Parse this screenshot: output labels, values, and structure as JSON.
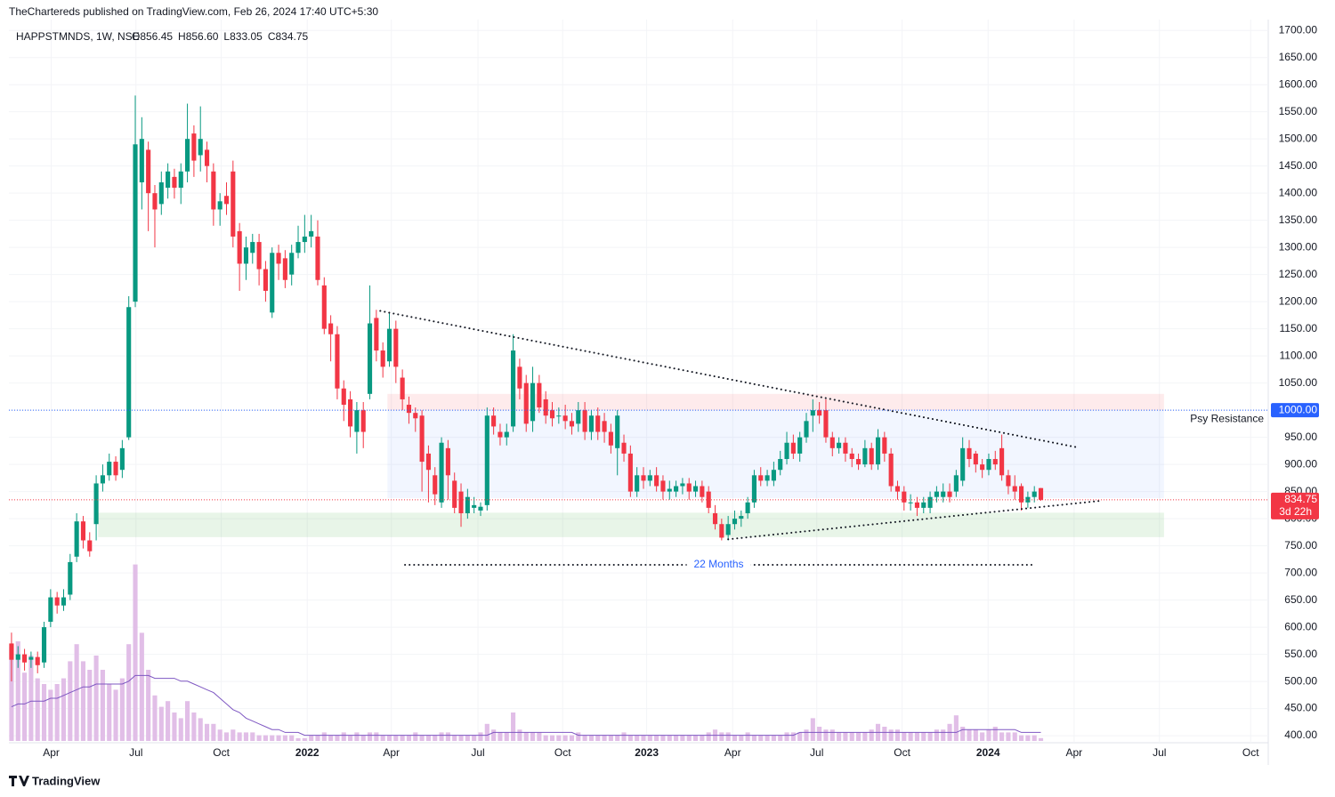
{
  "header": {
    "published": "TheChartereds published on TradingView.com, Feb 26, 2024 17:40 UTC+5:30",
    "footer": "TradingView"
  },
  "chart_data": {
    "type": "candlestick",
    "symbol": "HAPPSTMNDS, 1W, NSE",
    "legend_ohlc": [
      "O856.45",
      "H856.60",
      "L833.05",
      "C834.75"
    ],
    "up_color": "#089981",
    "down_color": "#f23645",
    "volume_color": "#e1bee7",
    "volume_ma_color": "#7e57c2",
    "grid": true,
    "open": [
      570,
      540,
      550,
      540,
      545,
      535,
      610,
      655,
      640,
      660,
      730,
      795,
      760,
      790,
      865,
      880,
      905,
      890,
      950,
      1200,
      1420,
      1480,
      1400,
      1380,
      1410,
      1430,
      1410,
      1440,
      1510,
      1470,
      1480,
      1440,
      1370,
      1395,
      1440,
      1330,
      1270,
      1290,
      1310,
      1260,
      1180,
      1290,
      1280,
      1250,
      1290,
      1310,
      1320,
      1320,
      1230,
      1160,
      1140,
      1040,
      1020,
      960,
      1000,
      1030,
      1170,
      1110,
      1090,
      1150,
      1060,
      1010,
      995,
      990,
      920,
      880,
      830,
      930,
      870,
      850,
      810,
      820,
      815,
      825,
      990,
      960,
      950,
      970,
      1080,
      1050,
      980,
      1050,
      1020,
      1000,
      990,
      990,
      980,
      975,
      1000,
      960,
      990,
      980,
      960,
      930,
      940,
      920,
      850,
      880,
      870,
      880,
      870,
      850,
      850,
      860,
      865,
      850,
      860,
      850,
      810,
      790,
      770,
      790,
      800,
      810,
      830,
      880,
      870,
      870,
      890,
      910,
      940,
      920,
      950,
      990,
      1000,
      1000,
      950,
      930,
      940,
      920,
      910,
      900,
      930,
      900,
      950,
      920,
      860,
      850,
      830,
      830,
      820,
      820,
      840,
      840,
      850,
      850,
      870,
      930,
      920,
      900,
      890,
      910,
      930,
      880,
      860,
      860,
      830,
      840,
      856.45
    ],
    "high": [
      590,
      565,
      560,
      555,
      555,
      610,
      670,
      665,
      670,
      735,
      810,
      805,
      775,
      880,
      900,
      920,
      915,
      945,
      1210,
      1580,
      1540,
      1495,
      1415,
      1440,
      1455,
      1445,
      1455,
      1565,
      1525,
      1560,
      1495,
      1455,
      1400,
      1420,
      1460,
      1345,
      1320,
      1325,
      1325,
      1275,
      1300,
      1305,
      1295,
      1305,
      1340,
      1360,
      1360,
      1350,
      1245,
      1175,
      1155,
      1055,
      1035,
      1015,
      1015,
      1230,
      1185,
      1125,
      1180,
      1165,
      1075,
      1025,
      1005,
      1000,
      935,
      895,
      950,
      945,
      885,
      865,
      855,
      840,
      830,
      1005,
      1005,
      975,
      975,
      1140,
      1095,
      1065,
      1080,
      1065,
      1035,
      1015,
      1005,
      1010,
      995,
      1015,
      1015,
      1000,
      1005,
      995,
      975,
      1000,
      955,
      935,
      895,
      895,
      890,
      895,
      880,
      870,
      870,
      875,
      875,
      870,
      870,
      860,
      825,
      800,
      805,
      815,
      815,
      840,
      890,
      895,
      890,
      905,
      925,
      960,
      955,
      960,
      995,
      1020,
      1015,
      1020,
      960,
      950,
      950,
      930,
      920,
      945,
      940,
      965,
      960,
      930,
      870,
      860,
      845,
      840,
      840,
      850,
      860,
      865,
      865,
      890,
      950,
      945,
      925,
      910,
      920,
      925,
      955,
      890,
      880,
      865,
      850,
      860,
      856.6
    ],
    "low": [
      500,
      525,
      520,
      525,
      515,
      525,
      600,
      625,
      630,
      650,
      720,
      745,
      730,
      760,
      850,
      870,
      870,
      875,
      945,
      1190,
      1370,
      1330,
      1300,
      1360,
      1390,
      1390,
      1380,
      1420,
      1430,
      1440,
      1420,
      1340,
      1340,
      1360,
      1300,
      1220,
      1240,
      1270,
      1230,
      1200,
      1170,
      1240,
      1225,
      1230,
      1280,
      1290,
      1300,
      1230,
      1140,
      1090,
      1020,
      980,
      950,
      920,
      930,
      1020,
      1090,
      1060,
      1080,
      1050,
      1000,
      975,
      960,
      850,
      830,
      825,
      820,
      835,
      810,
      785,
      800,
      810,
      805,
      815,
      955,
      935,
      935,
      960,
      1020,
      960,
      960,
      995,
      975,
      970,
      975,
      965,
      955,
      960,
      945,
      945,
      945,
      940,
      920,
      880,
      905,
      840,
      840,
      855,
      860,
      850,
      835,
      835,
      840,
      845,
      835,
      840,
      830,
      810,
      780,
      760,
      760,
      780,
      785,
      800,
      820,
      860,
      860,
      860,
      880,
      900,
      910,
      905,
      940,
      960,
      975,
      940,
      915,
      920,
      905,
      895,
      890,
      895,
      890,
      890,
      905,
      850,
      835,
      815,
      815,
      805,
      810,
      810,
      830,
      830,
      830,
      840,
      860,
      895,
      885,
      875,
      880,
      890,
      870,
      845,
      835,
      815,
      820,
      830,
      833.05
    ],
    "close": [
      540,
      550,
      535,
      545,
      530,
      600,
      655,
      640,
      655,
      720,
      795,
      760,
      740,
      865,
      880,
      905,
      880,
      930,
      1190,
      1490,
      1500,
      1400,
      1370,
      1420,
      1440,
      1410,
      1440,
      1500,
      1460,
      1500,
      1450,
      1370,
      1385,
      1380,
      1320,
      1270,
      1300,
      1310,
      1260,
      1220,
      1290,
      1270,
      1240,
      1290,
      1310,
      1320,
      1330,
      1240,
      1150,
      1140,
      1040,
      1010,
      970,
      1000,
      960,
      1160,
      1110,
      1080,
      1150,
      1080,
      1020,
      995,
      985,
      905,
      890,
      845,
      940,
      880,
      820,
      810,
      840,
      825,
      822,
      990,
      970,
      950,
      960,
      1110,
      1040,
      975,
      1050,
      1005,
      990,
      985,
      990,
      980,
      970,
      1000,
      960,
      990,
      960,
      960,
      935,
      990,
      920,
      850,
      880,
      870,
      880,
      860,
      850,
      855,
      860,
      865,
      850,
      860,
      840,
      820,
      790,
      765,
      790,
      800,
      805,
      830,
      880,
      870,
      880,
      890,
      910,
      940,
      920,
      950,
      980,
      1000,
      990,
      950,
      930,
      940,
      920,
      910,
      900,
      930,
      900,
      950,
      920,
      860,
      850,
      830,
      830,
      820,
      830,
      840,
      850,
      850,
      840,
      880,
      930,
      910,
      900,
      890,
      910,
      900,
      880,
      860,
      850,
      830,
      840,
      850,
      834.75
    ],
    "volume": [
      33,
      35,
      24,
      30,
      22,
      20,
      18,
      20,
      22,
      28,
      34,
      28,
      25,
      30,
      25,
      20,
      18,
      22,
      34,
      62,
      38,
      25,
      16,
      12,
      14,
      10,
      8,
      14,
      10,
      8,
      6,
      6,
      4,
      3,
      4,
      3,
      3,
      3,
      2,
      2,
      2,
      2,
      2,
      2,
      1,
      1,
      2,
      2,
      3,
      2,
      2,
      3,
      2,
      3,
      2,
      3,
      3,
      2,
      2,
      2,
      2,
      2,
      3,
      2,
      2,
      2,
      3,
      3,
      2,
      2,
      2,
      2,
      3,
      6,
      4,
      3,
      3,
      10,
      4,
      3,
      3,
      3,
      2,
      2,
      2,
      2,
      2,
      3,
      2,
      2,
      2,
      2,
      2,
      2,
      3,
      2,
      2,
      2,
      2,
      2,
      2,
      2,
      2,
      2,
      2,
      2,
      2,
      3,
      4,
      3,
      3,
      2,
      2,
      3,
      2,
      2,
      2,
      2,
      2,
      3,
      3,
      3,
      4,
      8,
      5,
      4,
      4,
      3,
      3,
      3,
      3,
      3,
      4,
      6,
      5,
      4,
      4,
      3,
      3,
      3,
      3,
      3,
      4,
      4,
      6,
      9,
      5,
      4,
      4,
      3,
      4,
      5,
      3,
      3,
      3,
      2,
      2,
      2,
      1
    ],
    "volume_ma": [
      12,
      13,
      13,
      14,
      14,
      14,
      15,
      15,
      16,
      17,
      18,
      19,
      19,
      20,
      20,
      20,
      20,
      20,
      21,
      23,
      23,
      23,
      22,
      22,
      22,
      22,
      21,
      21,
      20,
      19,
      18,
      17,
      15,
      13,
      11,
      10,
      8,
      7,
      6,
      5,
      4,
      4,
      3,
      3,
      3,
      2,
      2,
      2,
      2,
      2,
      2,
      2,
      2,
      2,
      2,
      2,
      2,
      2,
      2,
      2,
      2,
      2,
      2,
      2,
      2,
      2,
      2,
      2,
      2,
      2,
      2,
      2,
      2,
      2,
      3,
      3,
      3,
      3,
      3,
      3,
      3,
      3,
      3,
      3,
      3,
      3,
      3,
      2,
      2,
      2,
      2,
      2,
      2,
      2,
      2,
      2,
      2,
      2,
      2,
      2,
      2,
      2,
      2,
      2,
      2,
      2,
      2,
      2,
      2,
      2,
      2,
      2,
      2,
      2,
      2,
      2,
      2,
      2,
      2,
      2,
      2,
      3,
      3,
      3,
      3,
      3,
      3,
      3,
      3,
      3,
      3,
      3,
      3,
      3,
      3,
      3,
      3,
      3,
      3,
      3,
      3,
      3,
      3,
      3,
      3,
      3,
      4,
      4,
      4,
      4,
      4,
      4,
      4,
      4,
      4,
      3,
      3,
      3,
      3
    ],
    "vlim": [
      0,
      100
    ],
    "xlim": [
      -0.4,
      192.9
    ],
    "xticks": [
      {
        "value": 6.1,
        "label": "Apr"
      },
      {
        "value": 19.1,
        "label": "Jul"
      },
      {
        "value": 32.2,
        "label": "Oct"
      },
      {
        "value": 45.4,
        "label": "2022"
      },
      {
        "value": 58.3,
        "label": "Apr"
      },
      {
        "value": 71.6,
        "label": "Jul"
      },
      {
        "value": 84.6,
        "label": "Oct"
      },
      {
        "value": 97.5,
        "label": "2023"
      },
      {
        "value": 110.7,
        "label": "Apr"
      },
      {
        "value": 123.6,
        "label": "Jul"
      },
      {
        "value": 136.7,
        "label": "Oct"
      },
      {
        "value": 149.9,
        "label": "2024"
      },
      {
        "value": 163.1,
        "label": "Apr"
      },
      {
        "value": 176.2,
        "label": "Jul"
      },
      {
        "value": 190.2,
        "label": "Oct"
      }
    ],
    "ylim": [
      387,
      1720
    ],
    "yticks": [
      {
        "value": 400,
        "label": "400.00"
      },
      {
        "value": 450,
        "label": "450.00"
      },
      {
        "value": 500,
        "label": "500.00"
      },
      {
        "value": 550,
        "label": "550.00"
      },
      {
        "value": 600,
        "label": "600.00"
      },
      {
        "value": 650,
        "label": "650.00"
      },
      {
        "value": 700,
        "label": "700.00"
      },
      {
        "value": 750,
        "label": "750.00"
      },
      {
        "value": 800,
        "label": "800.00"
      },
      {
        "value": 850,
        "label": "850.00"
      },
      {
        "value": 900,
        "label": "900.00"
      },
      {
        "value": 950,
        "label": "950.00"
      },
      {
        "value": 1000,
        "label": "1000.00"
      },
      {
        "value": 1050,
        "label": "1050.00"
      },
      {
        "value": 1100,
        "label": "1100.00"
      },
      {
        "value": 1150,
        "label": "1150.00"
      },
      {
        "value": 1200,
        "label": "1200.00"
      },
      {
        "value": 1250,
        "label": "1250.00"
      },
      {
        "value": 1300,
        "label": "1300.00"
      },
      {
        "value": 1350,
        "label": "1350.00"
      },
      {
        "value": 1400,
        "label": "1400.00"
      },
      {
        "value": 1450,
        "label": "1450.00"
      },
      {
        "value": 1500,
        "label": "1500.00"
      },
      {
        "value": 1550,
        "label": "1550.00"
      },
      {
        "value": 1600,
        "label": "1600.00"
      },
      {
        "value": 1650,
        "label": "1650.00"
      },
      {
        "value": 1700,
        "label": "1700.00"
      }
    ],
    "zones": [
      {
        "x": [
          57.7,
          176.9
        ],
        "y": [
          1000,
          1030
        ],
        "color": "rgba(242,54,69,0.10)"
      },
      {
        "x": [
          57.7,
          176.9
        ],
        "y": [
          838,
          1000
        ],
        "color": "rgba(41,98,255,0.06)"
      },
      {
        "x": [
          13.3,
          176.9
        ],
        "y": [
          766,
          811
        ],
        "color": "rgba(76,175,80,0.13)"
      }
    ],
    "trendlines": [
      {
        "x": [
          56.6,
          163.8
        ],
        "y": [
          1183,
          931
        ]
      },
      {
        "x": [
          110,
          167.2
        ],
        "y": [
          762,
          833
        ]
      },
      {
        "x": [
          60.4,
          156.7
        ],
        "y": [
          715,
          715
        ],
        "label": "22 Months"
      }
    ],
    "price_lines": [
      {
        "value": 1000,
        "label": "1000.00",
        "color": "#2962ff",
        "text": "Psy Resistance"
      },
      {
        "value": 834.75,
        "label": "834.75",
        "color": "#f23645",
        "countdown": "3d 22h"
      }
    ]
  }
}
